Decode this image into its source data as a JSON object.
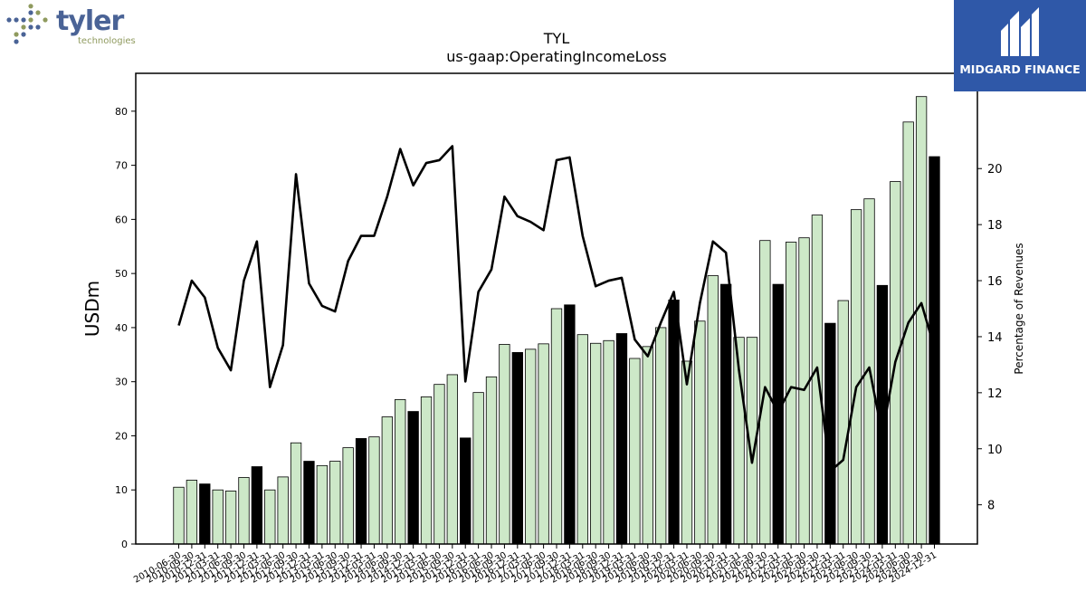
{
  "logos": {
    "left": {
      "name": "tyler",
      "subtext": "technologies",
      "colors": [
        "#4a6396",
        "#8f9a5e"
      ]
    },
    "right": {
      "name": "MIDGARD FINANCE",
      "background": "#2f58a8"
    }
  },
  "chart_data": {
    "type": "bar+line",
    "title": "TYL",
    "subtitle": "us-gaap:OperatingIncomeLoss",
    "ylabel": "USDm",
    "y2label": "Percentage of Revenues",
    "ylim": [
      0,
      87
    ],
    "y2lim": [
      6.6,
      23.4
    ],
    "yticks": [
      0,
      10,
      20,
      30,
      40,
      50,
      60,
      70,
      80
    ],
    "y2ticks": [
      8,
      10,
      12,
      14,
      16,
      18,
      20
    ],
    "grid": false,
    "colors": {
      "bar_quarter": "#cde8c8",
      "bar_annual": "#000000",
      "line": "#000000",
      "edge": "#000000"
    },
    "categories": [
      "2010-06-30",
      "2010-09-30",
      "2010-12-31",
      "2011-03-31",
      "2011-06-30",
      "2011-09-30",
      "2011-12-31",
      "2012-03-31",
      "2012-06-30",
      "2012-09-30",
      "2012-12-31",
      "2013-03-31",
      "2013-06-30",
      "2013-09-30",
      "2013-12-31",
      "2014-03-31",
      "2014-06-30",
      "2014-09-30",
      "2014-12-31",
      "2015-03-31",
      "2015-06-30",
      "2015-09-30",
      "2015-12-31",
      "2016-03-31",
      "2016-06-30",
      "2016-09-30",
      "2016-12-31",
      "2017-03-31",
      "2017-06-30",
      "2017-09-30",
      "2017-12-31",
      "2018-03-31",
      "2018-06-30",
      "2018-09-30",
      "2018-12-31",
      "2019-03-31",
      "2019-06-30",
      "2019-09-30",
      "2019-12-31",
      "2020-03-31",
      "2020-06-30",
      "2020-09-30",
      "2020-12-31",
      "2021-03-31",
      "2021-06-30",
      "2021-09-30",
      "2021-12-31",
      "2022-03-31",
      "2022-06-30",
      "2022-09-30",
      "2022-12-31",
      "2023-03-31",
      "2023-06-30",
      "2023-09-30",
      "2023-12-31",
      "2024-03-31",
      "2024-06-30",
      "2024-09-30",
      "2024-12-31"
    ],
    "annual": [
      false,
      false,
      true,
      false,
      false,
      false,
      true,
      false,
      false,
      false,
      true,
      false,
      false,
      false,
      true,
      false,
      false,
      false,
      true,
      false,
      false,
      false,
      true,
      false,
      false,
      false,
      true,
      false,
      false,
      false,
      true,
      false,
      false,
      false,
      true,
      false,
      false,
      false,
      true,
      false,
      false,
      false,
      true,
      false,
      false,
      false,
      true,
      false,
      false,
      false,
      true,
      false,
      false,
      false,
      true,
      false,
      false,
      false,
      true
    ],
    "series": [
      {
        "type": "bar",
        "values": [
          10.5,
          11.8,
          11.1,
          10.0,
          9.8,
          12.3,
          14.3,
          10.0,
          12.4,
          18.7,
          15.3,
          14.5,
          15.3,
          17.8,
          19.5,
          19.8,
          23.5,
          26.7,
          24.5,
          27.2,
          29.5,
          31.3,
          19.6,
          28.0,
          30.9,
          36.9,
          35.4,
          36.0,
          37.0,
          43.5,
          44.2,
          38.7,
          37.1,
          37.6,
          38.9,
          34.3,
          36.5,
          40.0,
          45.1,
          33.8,
          41.2,
          49.6,
          48.0,
          38.2,
          38.2,
          56.1,
          48.0,
          55.8,
          56.6,
          60.8,
          40.8,
          45.0,
          61.8,
          63.8,
          47.8,
          67.0,
          78.0,
          82.7,
          71.6
        ]
      },
      {
        "type": "line",
        "axis": "right",
        "values": [
          14.4,
          16.0,
          15.4,
          13.6,
          12.8,
          16.0,
          17.4,
          12.2,
          13.7,
          19.8,
          15.9,
          15.1,
          14.9,
          16.7,
          17.6,
          17.6,
          19.0,
          20.7,
          19.4,
          20.2,
          20.3,
          20.8,
          12.4,
          15.6,
          16.4,
          19.0,
          18.3,
          18.1,
          17.8,
          20.3,
          20.4,
          17.6,
          15.8,
          16.0,
          16.1,
          13.9,
          13.3,
          14.5,
          15.6,
          12.3,
          15.2,
          17.4,
          17.0,
          12.8,
          9.5,
          12.2,
          11.3,
          12.2,
          12.1,
          12.9,
          9.2,
          9.6,
          12.2,
          12.9,
          10.5,
          13.1,
          14.5,
          15.2,
          13.6
        ]
      }
    ]
  }
}
